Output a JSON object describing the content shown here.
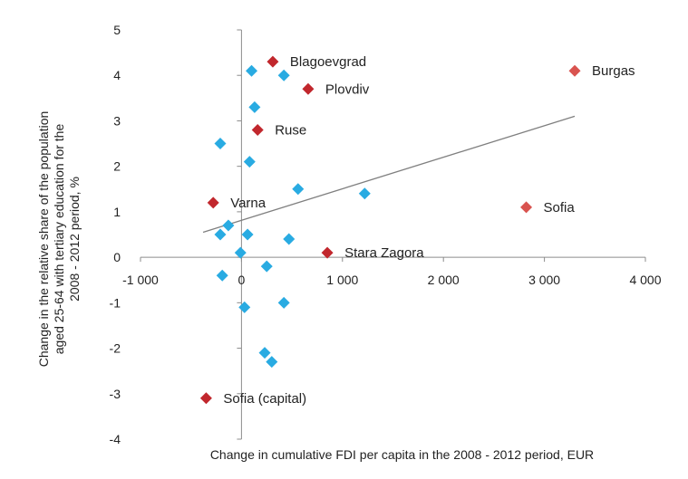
{
  "chart_data": {
    "type": "scatter",
    "xlabel": "Change in cumulative FDI per capita in the 2008 - 2012 period, EUR",
    "ylabel": "Change in the relative share of the population aged 25-64 with tertiary education for the 2008 - 2012 period, %",
    "xlim": [
      -1000,
      4000
    ],
    "ylim": [
      -4,
      5
    ],
    "x_ticks": [
      -1000,
      0,
      1000,
      2000,
      3000,
      4000
    ],
    "x_tick_labels": [
      "-1 000",
      "0",
      "1 000",
      "2 000",
      "3 000",
      "4 000"
    ],
    "y_ticks": [
      -4,
      -3,
      -2,
      -1,
      0,
      1,
      2,
      3,
      4,
      5
    ],
    "y_tick_labels": [
      "-4",
      "-3",
      "-2",
      "-1",
      "0",
      "1",
      "2",
      "3",
      "4",
      "5"
    ],
    "grid": false,
    "colors": {
      "unlabeled": "#29abe2",
      "labeled": "#c1272d",
      "labeled_light": "#d9534f",
      "trendline": "#7f7f7f",
      "axis": "#8c8c8c"
    },
    "points": [
      {
        "x": 100,
        "y": 4.1
      },
      {
        "x": 420,
        "y": 4.0
      },
      {
        "x": 130,
        "y": 3.3
      },
      {
        "x": -210,
        "y": 2.5
      },
      {
        "x": 80,
        "y": 2.1
      },
      {
        "x": 560,
        "y": 1.5
      },
      {
        "x": 1220,
        "y": 1.4
      },
      {
        "x": -130,
        "y": 0.7
      },
      {
        "x": -210,
        "y": 0.5
      },
      {
        "x": 60,
        "y": 0.5
      },
      {
        "x": 470,
        "y": 0.4
      },
      {
        "x": -10,
        "y": 0.1
      },
      {
        "x": 250,
        "y": -0.2
      },
      {
        "x": -190,
        "y": -0.4
      },
      {
        "x": 420,
        "y": -1.0
      },
      {
        "x": 30,
        "y": -1.1
      },
      {
        "x": 230,
        "y": -2.1
      },
      {
        "x": 300,
        "y": -2.3
      }
    ],
    "labeled_points": [
      {
        "name": "Blagoevgrad",
        "x": 310,
        "y": 4.3,
        "color": "labeled"
      },
      {
        "name": "Burgas",
        "x": 3300,
        "y": 4.1,
        "color": "labeled_light"
      },
      {
        "name": "Plovdiv",
        "x": 660,
        "y": 3.7,
        "color": "labeled"
      },
      {
        "name": "Ruse",
        "x": 160,
        "y": 2.8,
        "color": "labeled"
      },
      {
        "name": "Varna",
        "x": -280,
        "y": 1.2,
        "color": "labeled"
      },
      {
        "name": "Sofia",
        "x": 2820,
        "y": 1.1,
        "color": "labeled_light"
      },
      {
        "name": "Stara Zagora",
        "x": 850,
        "y": 0.1,
        "color": "labeled"
      },
      {
        "name": "Sofia (capital)",
        "x": -350,
        "y": -3.1,
        "color": "labeled"
      }
    ],
    "trendline": [
      {
        "x": -380,
        "y": 0.55
      },
      {
        "x": 3300,
        "y": 3.1
      }
    ]
  }
}
